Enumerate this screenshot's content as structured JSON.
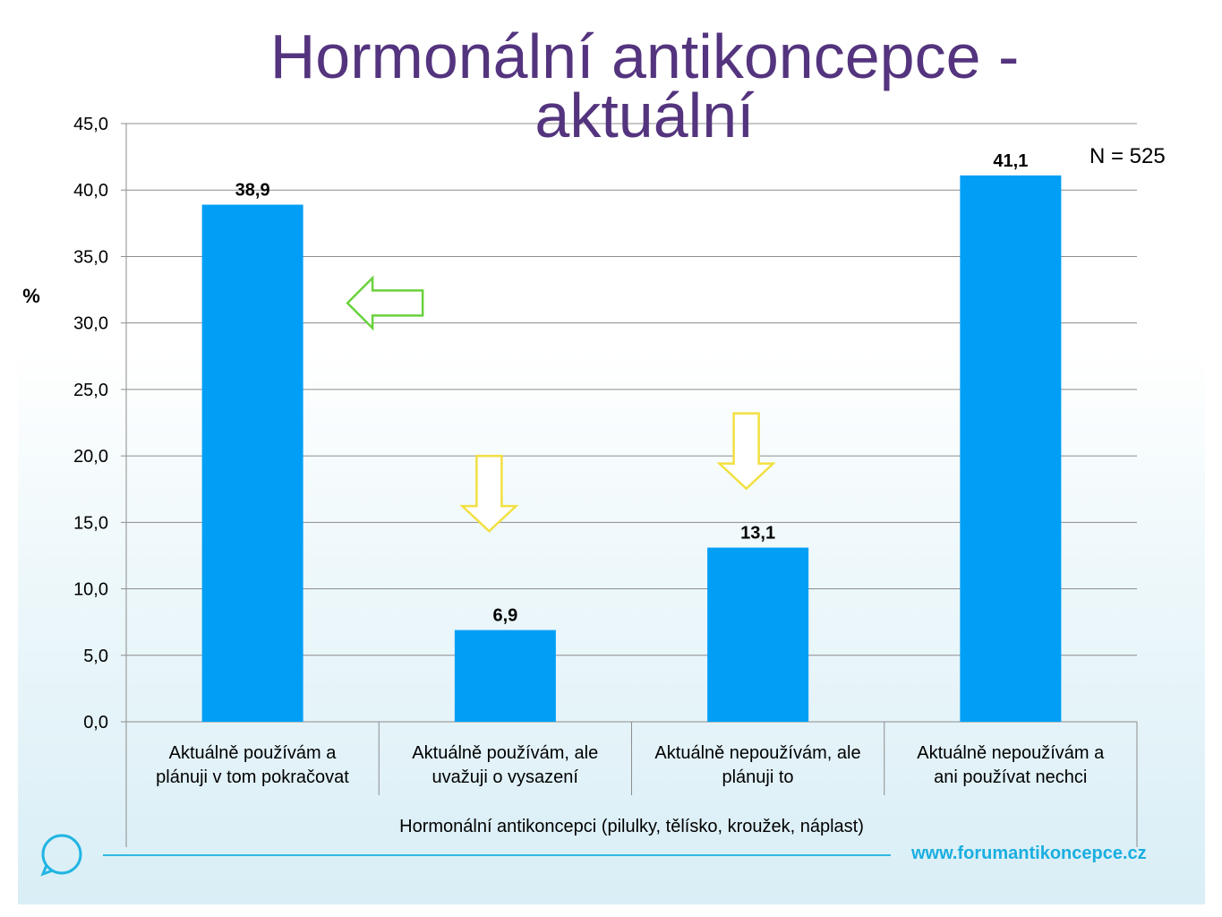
{
  "title_lines": [
    "Hormonální antikoncepce -",
    "aktuální"
  ],
  "sample_label": "N = 525",
  "footer_url": "www.forumantikoncepce.cz",
  "chart_data": {
    "type": "bar",
    "title": "Hormonální antikoncepce - aktuální",
    "ylabel": "%",
    "xlabel": "Hormonální antikoncepci (pilulky, tělísko, kroužek, náplast)",
    "ylim": [
      0,
      45
    ],
    "yticks": [
      "0,0",
      "5,0",
      "10,0",
      "15,0",
      "20,0",
      "25,0",
      "30,0",
      "35,0",
      "40,0",
      "45,0"
    ],
    "grid": true,
    "categories": [
      [
        "Aktuálně používám a",
        "plánuji v tom pokračovat"
      ],
      [
        "Aktuálně používám, ale",
        "uvažuji o vysazení"
      ],
      [
        "Aktuálně nepoužívám, ale",
        "plánuji to"
      ],
      [
        "Aktuálně nepoužívám a",
        "ani používat nechci"
      ]
    ],
    "values": [
      38.9,
      6.9,
      13.1,
      41.1
    ],
    "value_labels": [
      "38,9",
      "6,9",
      "13,1",
      "41,1"
    ],
    "bar_color": "#009ff5",
    "annotations": [
      {
        "shape": "arrow-left",
        "category_index": 0,
        "color": "#6ad13c"
      },
      {
        "shape": "arrow-down",
        "category_index": 1,
        "color": "#f2e040"
      },
      {
        "shape": "arrow-down",
        "category_index": 2,
        "color": "#f2e040"
      }
    ]
  }
}
